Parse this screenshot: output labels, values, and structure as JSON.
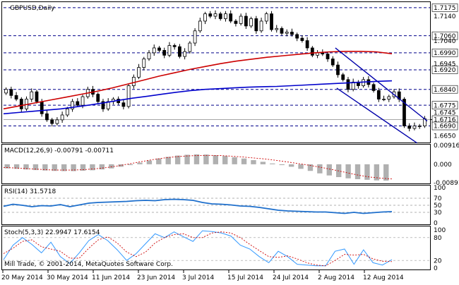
{
  "window": {
    "title": "GBPUSD,Daily",
    "copyright": "Mill Trade, © 2001-2014, MetaQuotes Software Corp."
  },
  "colors": {
    "bull_candle": "#ffffff",
    "bear_candle": "#000000",
    "ma_slow": "#0000cc",
    "ma_fast": "#cc0000",
    "channel": "#0000aa",
    "level_line": "#00008b",
    "macd_hist": "#b0b0b0",
    "macd_signal": "#cc0000",
    "rsi_line": "#1e6fcc",
    "stoch_main": "#3399ff",
    "stoch_signal": "#cc0000"
  },
  "chart_data": [
    {
      "type": "candlestick",
      "title": "GBPUSD,Daily",
      "ylim": [
        1.6625,
        1.7195
      ],
      "x_labels": [
        "20 May 2014",
        "30 May 2014",
        "11 Jun 2014",
        "23 Jun 2014",
        "3 Jul 2014",
        "15 Jul 2014",
        "24 Jul 2014",
        "2 Aug 2014",
        "12 Aug 2014"
      ],
      "y_ticks": [
        "1.7175",
        "1.7140",
        "1.7060",
        "1.7040",
        "1.6990",
        "1.6945",
        "1.6920",
        "1.6840",
        "1.6775",
        "1.6745",
        "1.6716",
        "1.6690",
        "1.6650"
      ],
      "levels": [
        1.7175,
        1.706,
        1.699,
        1.692,
        1.684,
        1.6775,
        1.669
      ],
      "current_price": 1.6716,
      "close": [
        1.684,
        1.6815,
        1.68,
        1.676,
        1.68,
        1.683,
        1.679,
        1.674,
        1.6715,
        1.67,
        1.6715,
        1.6735,
        1.676,
        1.679,
        1.6775,
        1.681,
        1.684,
        1.682,
        1.679,
        1.676,
        1.679,
        1.68,
        1.6785,
        1.677,
        1.6855,
        1.689,
        1.693,
        1.6965,
        1.699,
        1.701,
        1.7,
        1.698,
        1.702,
        1.7015,
        1.6975,
        1.6995,
        1.703,
        1.708,
        1.712,
        1.715,
        1.714,
        1.715,
        1.713,
        1.715,
        1.712,
        1.711,
        1.714,
        1.71,
        1.713,
        1.708,
        1.712,
        1.715,
        1.7085,
        1.709,
        1.707,
        1.7075,
        1.7065,
        1.705,
        1.704,
        1.701,
        1.698,
        1.699,
        1.6985,
        1.6965,
        1.694,
        1.69,
        1.688,
        1.684,
        1.687,
        1.6855,
        1.688,
        1.686,
        1.6835,
        1.68,
        1.68,
        1.681,
        1.683,
        1.68,
        1.669,
        1.668,
        1.669,
        1.669,
        1.672
      ],
      "ma_slow": [
        1.674,
        1.6745,
        1.675,
        1.6755,
        1.676,
        1.6768,
        1.6776,
        1.6785,
        1.6795,
        1.6804,
        1.6812,
        1.682,
        1.6828,
        1.6835,
        1.684,
        1.6843,
        1.6846,
        1.6849,
        1.6851,
        1.6852,
        1.6855,
        1.6858,
        1.6861,
        1.6864,
        1.6867,
        1.687,
        1.6873,
        1.6875
      ],
      "ma_fast": [
        1.676,
        1.6772,
        1.6784,
        1.6796,
        1.6808,
        1.682,
        1.6832,
        1.6846,
        1.6862,
        1.6878,
        1.6894,
        1.6908,
        1.6922,
        1.6934,
        1.6946,
        1.6956,
        1.6964,
        1.6972,
        1.6978,
        1.6984,
        1.699,
        1.6994,
        1.6996,
        1.6996,
        1.6994,
        1.6986
      ]
    },
    {
      "type": "bar",
      "title": "MACD(12,26,9) -0.00791 -0.00711",
      "ylim": [
        -0.00891,
        0.00916
      ],
      "y_ticks": [
        "0.00916",
        "0.000",
        "-0.00891"
      ],
      "histogram": [
        -0.002,
        -0.0022,
        -0.0025,
        -0.0028,
        -0.003,
        -0.0032,
        -0.0033,
        -0.0033,
        -0.0031,
        -0.0029,
        -0.0025,
        -0.002,
        -0.0012,
        -0.0004,
        0.0008,
        0.0018,
        0.0028,
        0.0036,
        0.0042,
        0.0046,
        0.0048,
        0.0047,
        0.0044,
        0.004,
        0.0034,
        0.0028,
        0.002,
        0.0012,
        0.0004,
        -0.0004,
        -0.0012,
        -0.0022,
        -0.0032,
        -0.0044,
        -0.0054,
        -0.0062,
        -0.0068,
        -0.0072,
        -0.0075,
        -0.0078,
        -0.0079
      ],
      "signal": [
        -0.0015,
        -0.0018,
        -0.0021,
        -0.0024,
        -0.0027,
        -0.0028,
        -0.0028,
        -0.0026,
        -0.0022,
        -0.0016,
        -0.0008,
        0.0002,
        0.0012,
        0.0022,
        0.003,
        0.0036,
        0.004,
        0.0042,
        0.0043,
        0.0042,
        0.0039,
        0.0035,
        0.003,
        0.0025,
        0.0018,
        0.001,
        0.0002,
        -0.0007,
        -0.0017,
        -0.0028,
        -0.004,
        -0.0052,
        -0.0061,
        -0.0067,
        -0.0071
      ]
    },
    {
      "type": "line",
      "title": "RSI(14) 31.5718",
      "ylim": [
        0,
        100
      ],
      "y_ticks": [
        "100",
        "70",
        "50",
        "30",
        "0"
      ],
      "levels": [
        70,
        50,
        30
      ],
      "values": [
        47,
        53,
        50,
        46,
        49,
        48,
        52,
        46,
        51,
        56,
        58,
        59,
        60,
        61,
        63,
        64,
        63,
        66,
        67,
        66,
        64,
        58,
        54,
        53,
        51,
        48,
        47,
        44,
        40,
        36,
        34,
        33,
        32,
        31,
        31,
        29,
        27,
        30,
        27,
        29,
        31,
        32
      ]
    },
    {
      "type": "line",
      "title": "Stoch(5,3,3) 22.9947 17.6154",
      "ylim": [
        0,
        100
      ],
      "y_ticks": [
        "100",
        "80",
        "20",
        "0"
      ],
      "levels": [
        80,
        20
      ],
      "main": [
        22,
        60,
        80,
        62,
        40,
        68,
        30,
        12,
        40,
        72,
        88,
        72,
        48,
        20,
        38,
        64,
        90,
        80,
        95,
        82,
        70,
        98,
        96,
        92,
        84,
        60,
        50,
        30,
        14,
        44,
        30,
        10,
        8,
        6,
        6,
        44,
        50,
        10,
        48,
        14,
        8,
        22
      ],
      "signal": [
        38,
        52,
        70,
        74,
        56,
        50,
        44,
        26,
        26,
        52,
        74,
        82,
        66,
        42,
        30,
        42,
        66,
        80,
        88,
        90,
        80,
        80,
        92,
        95,
        92,
        80,
        62,
        46,
        30,
        28,
        32,
        24,
        14,
        8,
        6,
        20,
        36,
        34,
        36,
        24,
        18,
        17
      ]
    }
  ]
}
